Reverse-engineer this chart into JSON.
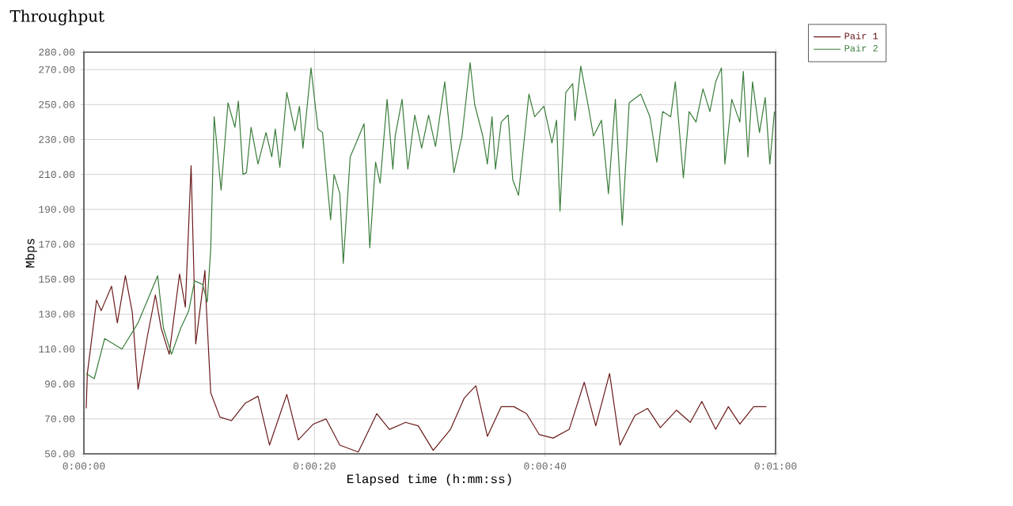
{
  "chart_data": {
    "type": "line",
    "title": "Throughput",
    "xlabel": "Elapsed time (h:mm:ss)",
    "ylabel": "Mbps",
    "xlim": [
      0,
      60
    ],
    "ylim": [
      50,
      280
    ],
    "xticks": [
      {
        "value": 0,
        "label": "0:00:00"
      },
      {
        "value": 20,
        "label": "0:00:20"
      },
      {
        "value": 40,
        "label": "0:00:40"
      },
      {
        "value": 60,
        "label": "0:01:00"
      }
    ],
    "yticks": [
      {
        "value": 50,
        "label": "50.00"
      },
      {
        "value": 70,
        "label": "70.00"
      },
      {
        "value": 90,
        "label": "90.00"
      },
      {
        "value": 110,
        "label": "110.00"
      },
      {
        "value": 130,
        "label": "130.00"
      },
      {
        "value": 150,
        "label": "150.00"
      },
      {
        "value": 170,
        "label": "170.00"
      },
      {
        "value": 190,
        "label": "190.00"
      },
      {
        "value": 210,
        "label": "210.00"
      },
      {
        "value": 230,
        "label": "230.00"
      },
      {
        "value": 250,
        "label": "250.00"
      },
      {
        "value": 270,
        "label": "270.00"
      },
      {
        "value": 280,
        "label": "280.00"
      }
    ],
    "grid": true,
    "legend": "right",
    "marker": "none",
    "line_style": "solid",
    "series": [
      {
        "name": "Pair 1",
        "color": "#6b1a1a",
        "x": [
          0.2,
          0.3,
          1.1,
          1.5,
          2.4,
          2.9,
          3.6,
          4.2,
          4.7,
          5.5,
          6.2,
          6.7,
          7.4,
          8.3,
          8.8,
          9.3,
          9.7,
          10.5,
          10.6,
          11.0,
          11.8,
          12.8,
          14.0,
          15.1,
          16.1,
          17.6,
          18.6,
          19.9,
          21.0,
          22.2,
          23.8,
          25.4,
          26.5,
          27.9,
          29.0,
          30.3,
          31.8,
          33.0,
          34.0,
          35.0,
          36.2,
          37.3,
          38.4,
          39.5,
          40.7,
          42.1,
          43.4,
          44.4,
          45.6,
          46.5,
          47.8,
          48.9,
          50.0,
          51.4,
          52.6,
          53.6,
          54.8,
          55.9,
          56.9,
          58.1,
          59.2
        ],
        "values": [
          76,
          96,
          138,
          132,
          146,
          125,
          152,
          131,
          87,
          117,
          141,
          122,
          107,
          153,
          134,
          215,
          113,
          155,
          137,
          85,
          71,
          69,
          79,
          83,
          55,
          84,
          58,
          67,
          70,
          55,
          51,
          73,
          64,
          68,
          66,
          52,
          64,
          82,
          89,
          60,
          77,
          77,
          73,
          61,
          59,
          64,
          91,
          66,
          96,
          55,
          72,
          76,
          65,
          75,
          68,
          80,
          64,
          77,
          67,
          77,
          77
        ]
      },
      {
        "name": "Pair 2",
        "color": "#3a7d3a",
        "x": [
          0.2,
          0.9,
          1.8,
          3.3,
          4.7,
          6.4,
          6.9,
          7.6,
          8.4,
          9.1,
          9.6,
          10.3,
          10.7,
          11.0,
          11.3,
          11.9,
          12.5,
          13.1,
          13.4,
          13.8,
          14.1,
          14.5,
          15.1,
          15.8,
          16.3,
          16.6,
          17.0,
          17.6,
          18.3,
          18.7,
          19.0,
          19.7,
          20.3,
          20.7,
          21.4,
          21.7,
          22.2,
          22.5,
          23.1,
          23.8,
          24.3,
          24.8,
          25.3,
          25.7,
          26.3,
          26.8,
          27.0,
          27.6,
          28.1,
          28.7,
          29.3,
          29.9,
          30.5,
          31.3,
          32.1,
          32.8,
          33.5,
          33.9,
          34.6,
          35.0,
          35.4,
          35.7,
          36.2,
          36.8,
          37.2,
          37.7,
          38.6,
          39.1,
          39.9,
          40.6,
          41.0,
          41.3,
          41.8,
          42.4,
          42.6,
          43.1,
          43.7,
          44.2,
          44.9,
          45.5,
          46.1,
          46.7,
          47.3,
          48.3,
          49.1,
          49.7,
          50.2,
          50.9,
          51.3,
          52.0,
          52.5,
          53.1,
          53.7,
          54.3,
          54.8,
          55.3,
          55.6,
          56.2,
          56.9,
          57.2,
          57.6,
          58.0,
          58.6,
          59.1,
          59.5,
          59.9
        ],
        "values": [
          96,
          93,
          116,
          110,
          125,
          152,
          122,
          107,
          122,
          132,
          149,
          147,
          137,
          167,
          243,
          201,
          251,
          237,
          252,
          210,
          211,
          237,
          216,
          234,
          220,
          236,
          214,
          257,
          235,
          249,
          225,
          271,
          236,
          234,
          184,
          210,
          199,
          159,
          220,
          231,
          239,
          168,
          217,
          205,
          253,
          213,
          232,
          253,
          213,
          244,
          225,
          244,
          226,
          263,
          211,
          232,
          274,
          250,
          232,
          216,
          243,
          213,
          240,
          244,
          207,
          198,
          256,
          243,
          249,
          228,
          241,
          189,
          257,
          262,
          241,
          272,
          251,
          232,
          241,
          199,
          253,
          181,
          251,
          256,
          243,
          217,
          246,
          243,
          263,
          208,
          246,
          240,
          259,
          246,
          263,
          271,
          216,
          253,
          240,
          269,
          220,
          263,
          234,
          254,
          216,
          246
        ]
      }
    ]
  }
}
